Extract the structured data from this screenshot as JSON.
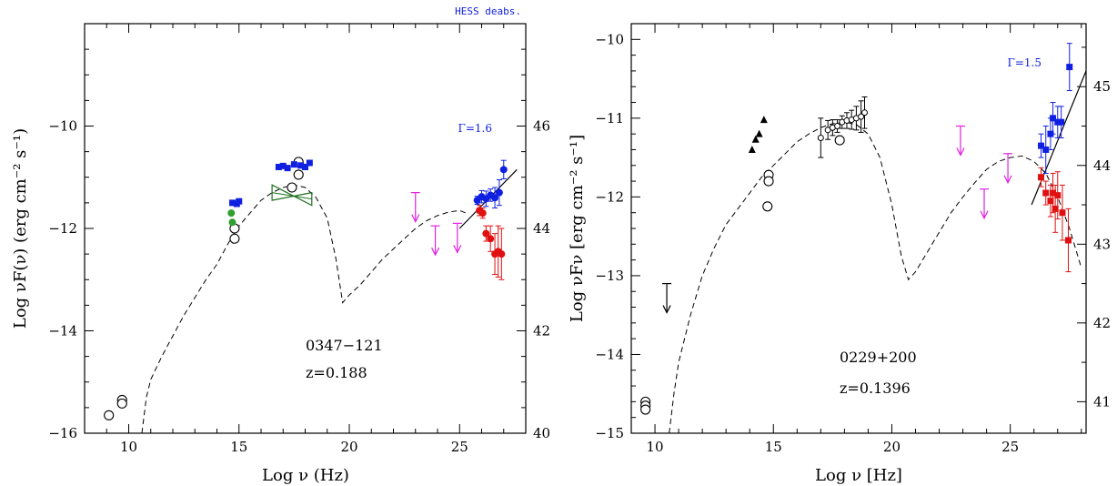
{
  "chart_data": [
    {
      "type": "scatter",
      "title": "",
      "header_note": "HESS deabs.",
      "source_label": "0347−121",
      "redshift_label": "z=0.188",
      "gamma_label": "Γ=1.6",
      "xlabel": "Log ν  (Hz)",
      "ylabel": "Log νF(ν)  (erg cm⁻² s⁻¹)",
      "xlim": [
        8,
        28
      ],
      "ylim": [
        -16,
        -8
      ],
      "y2lim": [
        40,
        48
      ],
      "x_ticks": [
        10,
        15,
        20,
        25
      ],
      "x_ticklabels": [
        "10",
        "15",
        "20",
        "25"
      ],
      "y_ticks": [
        -16,
        -14,
        -12,
        -10
      ],
      "y_ticklabels": [
        "−16",
        "−14",
        "−12",
        "−10"
      ],
      "y2_ticks": [
        40,
        42,
        44,
        46
      ],
      "y2_ticklabels": [
        "40",
        "42",
        "44",
        "46"
      ],
      "colors": {
        "blue": "#1020e0",
        "red": "#e01010",
        "green": "#30a030",
        "magenta": "#e020e0",
        "green_bowtie": "#207020"
      },
      "model_curve": {
        "x": [
          10.6,
          10.8,
          11.0,
          11.5,
          12.0,
          12.5,
          13.0,
          13.5,
          14.0,
          14.5,
          15.0,
          15.5,
          16.0,
          16.5,
          17.0,
          17.5,
          18.0,
          18.5,
          19.0,
          19.4,
          19.7,
          20.0,
          20.5,
          21.0,
          21.5,
          22.0,
          22.5,
          23.0,
          23.5,
          24.0,
          24.5,
          25.0,
          25.3
        ],
        "y": [
          -16.0,
          -15.3,
          -14.95,
          -14.5,
          -14.1,
          -13.7,
          -13.35,
          -13.0,
          -12.7,
          -12.3,
          -11.95,
          -11.7,
          -11.45,
          -11.3,
          -11.2,
          -11.15,
          -11.2,
          -11.4,
          -11.8,
          -12.6,
          -13.45,
          -13.3,
          -13.1,
          -12.85,
          -12.6,
          -12.4,
          -12.2,
          -12.0,
          -11.85,
          -11.75,
          -11.68,
          -11.65,
          -11.7
        ]
      },
      "powerlaw_line": {
        "x": [
          25.0,
          27.6
        ],
        "y": [
          -12.0,
          -10.85
        ]
      },
      "bowtie": {
        "x": [
          16.5,
          18.3
        ],
        "y_hi": [
          -11.15,
          -11.55
        ],
        "y_lo": [
          -11.45,
          -11.3
        ]
      },
      "series": [
        {
          "marker": "open_circle",
          "color": "#000000",
          "points": [
            [
              9.1,
              -15.65
            ],
            [
              9.7,
              -15.35
            ],
            [
              9.7,
              -15.42
            ],
            [
              14.8,
              -12.0
            ],
            [
              14.8,
              -12.2
            ],
            [
              17.4,
              -11.2
            ],
            [
              17.7,
              -10.95
            ],
            [
              17.7,
              -10.7
            ]
          ]
        },
        {
          "marker": "filled_circle",
          "color": "#30a030",
          "points": [
            [
              14.65,
              -11.7
            ],
            [
              14.7,
              -11.88
            ]
          ]
        },
        {
          "marker": "filled_square",
          "color": "#1020e0",
          "points": [
            [
              14.7,
              -11.5
            ],
            [
              14.9,
              -11.52
            ],
            [
              15.0,
              -11.47
            ],
            [
              16.8,
              -10.8
            ],
            [
              17.0,
              -10.78
            ],
            [
              17.2,
              -10.82
            ],
            [
              17.5,
              -10.75
            ],
            [
              17.8,
              -10.77
            ],
            [
              18.0,
              -10.8
            ],
            [
              18.2,
              -10.72
            ]
          ]
        },
        {
          "marker": "filled_circle",
          "color": "#1020e0",
          "points": [
            [
              25.8,
              -11.45
            ],
            [
              26.0,
              -11.38
            ],
            [
              26.2,
              -11.42
            ],
            [
              26.4,
              -11.35
            ],
            [
              26.6,
              -11.4
            ],
            [
              26.8,
              -11.3
            ],
            [
              27.0,
              -10.85
            ]
          ],
          "err": [
            0.08,
            0.12,
            0.15,
            0.12,
            0.2,
            0.25,
            0.18
          ]
        },
        {
          "marker": "filled_circle",
          "color": "#e01010",
          "points": [
            [
              25.9,
              -11.65
            ],
            [
              26.05,
              -11.7
            ],
            [
              26.2,
              -12.1
            ],
            [
              26.4,
              -12.2
            ],
            [
              26.6,
              -12.5
            ],
            [
              26.75,
              -12.45
            ],
            [
              26.9,
              -12.5
            ]
          ],
          "err": [
            0.1,
            0.1,
            0.15,
            0.25,
            0.4,
            0.5,
            0.5
          ]
        }
      ],
      "upper_limits": {
        "color": "#e020e0",
        "points": [
          [
            23.0,
            -11.3
          ],
          [
            23.9,
            -11.95
          ],
          [
            24.9,
            -11.9
          ]
        ]
      }
    },
    {
      "type": "scatter",
      "title": "",
      "source_label": "0229+200",
      "redshift_label": "z=0.1396",
      "gamma_label": "Γ=1.5",
      "xlabel": "Log ν  [Hz]",
      "ylabel": "Log νFν  [erg cm⁻² s⁻¹]",
      "xlim": [
        9,
        28.2
      ],
      "ylim": [
        -15,
        -9.8
      ],
      "y2lim": [
        40.6,
        45.8
      ],
      "x_ticks": [
        10,
        15,
        20,
        25
      ],
      "x_ticklabels": [
        "10",
        "15",
        "20",
        "25"
      ],
      "y_ticks": [
        -15,
        -14,
        -13,
        -12,
        -11,
        -10
      ],
      "y_ticklabels": [
        "−15",
        "−14",
        "−13",
        "−12",
        "−11",
        "−10"
      ],
      "y2_ticks": [
        41,
        42,
        43,
        44,
        45
      ],
      "y2_ticklabels": [
        "41",
        "42",
        "43",
        "44",
        "45"
      ],
      "colors": {
        "blue": "#1020e0",
        "red": "#e01010",
        "magenta": "#e020e0"
      },
      "model_curve": {
        "x": [
          10.6,
          10.8,
          11.0,
          11.5,
          12.0,
          12.5,
          13.0,
          13.5,
          14.0,
          14.5,
          15.0,
          15.5,
          16.0,
          16.5,
          17.0,
          17.5,
          18.0,
          18.5,
          19.0,
          19.5,
          20.0,
          20.4,
          20.7,
          21.0,
          21.5,
          22.0,
          22.5,
          23.0,
          23.5,
          24.0,
          24.5,
          25.0,
          25.5,
          26.0,
          26.5,
          27.0,
          27.5,
          28.0
        ],
        "y": [
          -15.0,
          -14.5,
          -14.1,
          -13.5,
          -13.0,
          -12.65,
          -12.35,
          -12.15,
          -11.95,
          -11.75,
          -11.6,
          -11.45,
          -11.3,
          -11.2,
          -11.12,
          -11.07,
          -11.05,
          -11.08,
          -11.2,
          -11.5,
          -12.1,
          -12.75,
          -13.05,
          -12.95,
          -12.7,
          -12.45,
          -12.2,
          -12.0,
          -11.82,
          -11.65,
          -11.55,
          -11.5,
          -11.48,
          -11.55,
          -11.7,
          -12.0,
          -12.4,
          -12.9
        ]
      },
      "powerlaw_line": {
        "x": [
          25.9,
          28.2
        ],
        "y": [
          -12.1,
          -10.4
        ]
      },
      "series": [
        {
          "marker": "open_circle",
          "color": "#000000",
          "points": [
            [
              9.6,
              -14.6
            ],
            [
              9.6,
              -14.65
            ],
            [
              9.6,
              -14.7
            ],
            [
              14.8,
              -11.72
            ],
            [
              14.8,
              -11.8
            ],
            [
              14.75,
              -12.12
            ],
            [
              17.8,
              -11.28
            ]
          ]
        },
        {
          "marker": "filled_triangle",
          "color": "#000000",
          "points": [
            [
              14.1,
              -11.4
            ],
            [
              14.25,
              -11.27
            ],
            [
              14.4,
              -11.2
            ],
            [
              14.6,
              -11.02
            ]
          ]
        },
        {
          "marker": "small_circle",
          "color": "#000000",
          "points": [
            [
              17.0,
              -11.25
            ],
            [
              17.3,
              -11.15
            ],
            [
              17.5,
              -11.12
            ],
            [
              17.7,
              -11.1
            ],
            [
              17.9,
              -11.05
            ],
            [
              18.1,
              -11.03
            ],
            [
              18.3,
              -11.02
            ],
            [
              18.5,
              -11.0
            ],
            [
              18.7,
              -10.98
            ],
            [
              18.85,
              -10.93
            ]
          ],
          "err": [
            0.25,
            0.12,
            0.1,
            0.08,
            0.08,
            0.1,
            0.12,
            0.15,
            0.2,
            0.2
          ]
        },
        {
          "marker": "filled_square",
          "color": "#1020e0",
          "points": [
            [
              26.3,
              -11.35
            ],
            [
              26.5,
              -11.4
            ],
            [
              26.7,
              -11.2
            ],
            [
              26.8,
              -11.0
            ],
            [
              27.0,
              -11.05
            ],
            [
              27.15,
              -11.05
            ],
            [
              27.5,
              -10.35
            ]
          ],
          "err": [
            0.15,
            0.3,
            0.2,
            0.2,
            0.2,
            0.2,
            0.3
          ]
        },
        {
          "marker": "filled_square",
          "color": "#e01010",
          "points": [
            [
              26.3,
              -11.75
            ],
            [
              26.5,
              -11.95
            ],
            [
              26.7,
              -12.05
            ],
            [
              26.8,
              -11.95
            ],
            [
              26.9,
              -12.15
            ],
            [
              27.0,
              -11.98
            ],
            [
              27.2,
              -12.2
            ],
            [
              27.45,
              -12.55
            ]
          ],
          "err": [
            0.12,
            0.15,
            0.2,
            0.25,
            0.3,
            0.3,
            0.35,
            0.4
          ]
        }
      ],
      "upper_limits": [
        {
          "color": "#e020e0",
          "points": [
            [
              22.9,
              -11.1
            ],
            [
              23.9,
              -11.9
            ],
            [
              24.9,
              -11.45
            ]
          ]
        },
        {
          "color": "#000000",
          "points": [
            [
              10.5,
              -13.1
            ]
          ]
        }
      ]
    }
  ]
}
